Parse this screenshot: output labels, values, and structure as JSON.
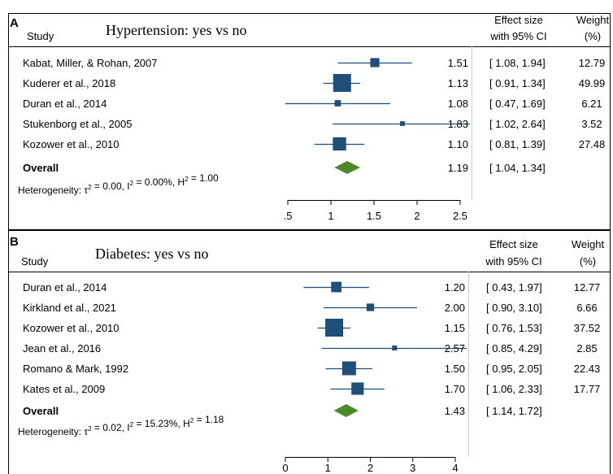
{
  "colors": {
    "marker": "#1f4e79",
    "diamond": "#4f8a2a",
    "frame": "#000000",
    "text": "#000000"
  },
  "chart_data": [
    {
      "type": "forest",
      "panel": "A",
      "title": "Hypertension: yes vs no",
      "header": {
        "study": "Study",
        "effect_line1": "Effect size",
        "effect_line2": "with 95% CI",
        "weight_line1": "Weight",
        "weight_line2": "(%)"
      },
      "studies": [
        {
          "name": "Kabat, Miller, & Rohan, 2007",
          "es": 1.51,
          "lo": 1.08,
          "hi": 1.94,
          "es_text": "1.51",
          "lo_text": "1.08",
          "hi_text": "1.94",
          "weight": "12.79",
          "w": 12.79
        },
        {
          "name": "Kuderer et al., 2018",
          "es": 1.13,
          "lo": 0.91,
          "hi": 1.34,
          "es_text": "1.13",
          "lo_text": "0.91",
          "hi_text": "1.34",
          "weight": "49.99",
          "w": 49.99
        },
        {
          "name": "Duran et al., 2014",
          "es": 1.08,
          "lo": 0.47,
          "hi": 1.69,
          "es_text": "1.08",
          "lo_text": "0.47",
          "hi_text": "1.69",
          "weight": "6.21",
          "w": 6.21
        },
        {
          "name": "Stukenborg et al., 2005",
          "es": 1.83,
          "lo": 1.02,
          "hi": 2.64,
          "es_text": "1.83",
          "lo_text": "1.02",
          "hi_text": "2.64",
          "weight": "3.52",
          "w": 3.52
        },
        {
          "name": "Kozower et al., 2010",
          "es": 1.1,
          "lo": 0.81,
          "hi": 1.39,
          "es_text": "1.10",
          "lo_text": "0.81",
          "hi_text": "1.39",
          "weight": "27.48",
          "w": 27.48
        }
      ],
      "overall": {
        "label": "Overall",
        "es": 1.19,
        "lo": 1.04,
        "hi": 1.34,
        "es_text": "1.19",
        "lo_text": "1.04",
        "hi_text": "1.34"
      },
      "heterogeneity": {
        "prefix": "Heterogeneity: ",
        "tau2": "0.00",
        "i2": "0.00%",
        "h2": "1.00"
      },
      "xlim": [
        0.5,
        2.5
      ],
      "ticks": [
        0.5,
        1,
        1.5,
        2,
        2.5
      ],
      "tick_labels": [
        ".5",
        "1",
        "1.5",
        "2",
        "2.5"
      ]
    },
    {
      "type": "forest",
      "panel": "B",
      "title": "Diabetes: yes vs no",
      "header": {
        "study": "Study",
        "effect_line1": "Effect size",
        "effect_line2": "with 95% CI",
        "weight_line1": "Weight",
        "weight_line2": "(%)"
      },
      "studies": [
        {
          "name": "Duran et al., 2014",
          "es": 1.2,
          "lo": 0.43,
          "hi": 1.97,
          "es_text": "1.20",
          "lo_text": "0.43",
          "hi_text": "1.97",
          "weight": "12.77",
          "w": 12.77
        },
        {
          "name": "Kirkland et al., 2021",
          "es": 2.0,
          "lo": 0.9,
          "hi": 3.1,
          "es_text": "2.00",
          "lo_text": "0.90",
          "hi_text": "3.10",
          "weight": "6.66",
          "w": 6.66
        },
        {
          "name": "Kozower et al., 2010",
          "es": 1.15,
          "lo": 0.76,
          "hi": 1.53,
          "es_text": "1.15",
          "lo_text": "0.76",
          "hi_text": "1.53",
          "weight": "37.52",
          "w": 37.52
        },
        {
          "name": "Jean et al., 2016",
          "es": 2.57,
          "lo": 0.85,
          "hi": 4.29,
          "es_text": "2.57",
          "lo_text": "0.85",
          "hi_text": "4.29",
          "weight": "2.85",
          "w": 2.85
        },
        {
          "name": "Romano & Mark, 1992",
          "es": 1.5,
          "lo": 0.95,
          "hi": 2.05,
          "es_text": "1.50",
          "lo_text": "0.95",
          "hi_text": "2.05",
          "weight": "22.43",
          "w": 22.43
        },
        {
          "name": "Kates et al., 2009",
          "es": 1.7,
          "lo": 1.06,
          "hi": 2.33,
          "es_text": "1.70",
          "lo_text": "1.06",
          "hi_text": "2.33",
          "weight": "17.77",
          "w": 17.77
        }
      ],
      "overall": {
        "label": "Overall",
        "es": 1.43,
        "lo": 1.14,
        "hi": 1.72,
        "es_text": "1.43",
        "lo_text": "1.14",
        "hi_text": "1.72"
      },
      "heterogeneity": {
        "prefix": "Heterogeneity: ",
        "tau2": "0.02",
        "i2": "15.23%",
        "h2": "1.18"
      },
      "xlim": [
        0,
        4
      ],
      "ticks": [
        0,
        1,
        2,
        3,
        4
      ],
      "tick_labels": [
        "0",
        "1",
        "2",
        "3",
        "4"
      ]
    }
  ]
}
